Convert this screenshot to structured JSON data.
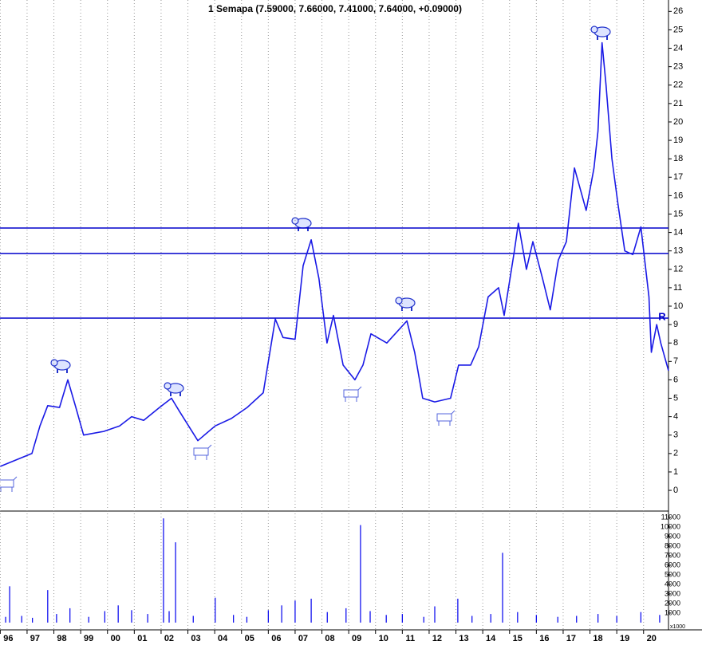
{
  "chart_data": [
    {
      "type": "line",
      "title": "1 Semapa (7.59000, 7.66000, 7.41000, 7.64000, +0.09000)",
      "x": [
        1996.0,
        1997.18,
        1997.48,
        1997.77,
        1998.21,
        1998.52,
        1998.82,
        1999.11,
        1999.86,
        2000.45,
        2000.9,
        2001.35,
        2001.94,
        2002.39,
        2002.68,
        2003.37,
        2004.02,
        2004.62,
        2005.21,
        2005.81,
        2006.26,
        2006.55,
        2007.0,
        2007.3,
        2007.6,
        2007.89,
        2008.19,
        2008.43,
        2008.79,
        2009.23,
        2009.53,
        2009.83,
        2010.42,
        2011.17,
        2011.46,
        2011.76,
        2012.21,
        2012.8,
        2013.1,
        2013.55,
        2013.85,
        2014.2,
        2014.59,
        2014.8,
        2015.18,
        2015.33,
        2015.63,
        2015.87,
        2016.23,
        2016.52,
        2016.82,
        2017.12,
        2017.42,
        2017.86,
        2018.15,
        2018.3,
        2018.45,
        2018.6,
        2018.82,
        2019.05,
        2019.3,
        2019.6,
        2019.9,
        2020.2,
        2020.29,
        2020.49,
        2020.64,
        2020.93
      ],
      "values": [
        1.3,
        2.0,
        3.5,
        4.6,
        4.5,
        6.0,
        4.5,
        3.0,
        3.2,
        3.5,
        4.0,
        3.8,
        4.5,
        5.0,
        4.3,
        2.7,
        3.5,
        3.9,
        4.5,
        5.3,
        9.3,
        8.3,
        8.2,
        12.2,
        13.6,
        11.5,
        8.0,
        9.5,
        6.8,
        6.0,
        6.8,
        8.5,
        8.0,
        9.2,
        7.5,
        5.0,
        4.8,
        5.0,
        6.8,
        6.8,
        7.8,
        10.5,
        11.0,
        9.5,
        13.0,
        14.5,
        12.0,
        13.5,
        11.5,
        9.8,
        12.5,
        13.5,
        17.5,
        15.2,
        17.5,
        19.5,
        24.3,
        22.0,
        18.0,
        15.5,
        13.0,
        12.8,
        14.3,
        10.5,
        7.5,
        9.0,
        8.0,
        6.5
      ],
      "color": "#1a1ae6",
      "xlim": [
        1995.99,
        2020.93
      ],
      "ylim": [
        -1.08,
        26.62
      ],
      "yticks": [
        0,
        1,
        2,
        3,
        4,
        5,
        6,
        7,
        8,
        9,
        10,
        11,
        12,
        13,
        14,
        15,
        16,
        17,
        18,
        19,
        20,
        21,
        22,
        23,
        24,
        25,
        26
      ],
      "xticks": [
        {
          "value": 1996,
          "label": "96"
        },
        {
          "value": 1997,
          "label": "97"
        },
        {
          "value": 1998,
          "label": "98"
        },
        {
          "value": 1999,
          "label": "99"
        },
        {
          "value": 2000,
          "label": "00"
        },
        {
          "value": 2001,
          "label": "01"
        },
        {
          "value": 2002,
          "label": "02"
        },
        {
          "value": 2003,
          "label": "03"
        },
        {
          "value": 2004,
          "label": "04"
        },
        {
          "value": 2005,
          "label": "05"
        },
        {
          "value": 2006,
          "label": "06"
        },
        {
          "value": 2007,
          "label": "07"
        },
        {
          "value": 2008,
          "label": "08"
        },
        {
          "value": 2009,
          "label": "09"
        },
        {
          "value": 2010,
          "label": "10"
        },
        {
          "value": 2011,
          "label": "11"
        },
        {
          "value": 2012,
          "label": "12"
        },
        {
          "value": 2013,
          "label": "13"
        },
        {
          "value": 2014,
          "label": "14"
        },
        {
          "value": 2015,
          "label": "15"
        },
        {
          "value": 2016,
          "label": "16"
        },
        {
          "value": 2017,
          "label": "17"
        },
        {
          "value": 2018,
          "label": "18"
        },
        {
          "value": 2019,
          "label": "19"
        },
        {
          "value": 2020,
          "label": "20"
        }
      ],
      "hlines": [
        14.24,
        12.86,
        9.35
      ],
      "hline_color": "#0000cc",
      "annotation": "R",
      "grid": true
    },
    {
      "type": "bar",
      "x": [
        1996.2,
        1996.35,
        1996.8,
        1997.2,
        1997.77,
        1998.1,
        1998.6,
        1999.3,
        1999.9,
        2000.4,
        2000.9,
        2001.5,
        2002.09,
        2002.3,
        2002.54,
        2003.2,
        2004.02,
        2004.7,
        2005.2,
        2006.0,
        2006.5,
        2007.0,
        2007.6,
        2008.2,
        2008.9,
        2009.44,
        2009.8,
        2010.4,
        2011.0,
        2011.8,
        2012.21,
        2013.07,
        2013.6,
        2014.3,
        2014.74,
        2015.3,
        2016.0,
        2016.8,
        2017.5,
        2018.3,
        2019.0,
        2019.9,
        2020.6
      ],
      "values": [
        600,
        3800,
        700,
        500,
        3400,
        900,
        1500,
        600,
        1200,
        1800,
        1300,
        900,
        10900,
        1200,
        8400,
        700,
        2600,
        800,
        600,
        1300,
        1800,
        2300,
        2500,
        1100,
        1500,
        10200,
        1200,
        800,
        900,
        600,
        1700,
        2500,
        700,
        900,
        7300,
        1100,
        800,
        600,
        700,
        900,
        700,
        1100,
        800
      ],
      "color": "#0000ee",
      "ylim": [
        -760,
        11500
      ],
      "yticks": [
        1000,
        2000,
        3000,
        4000,
        5000,
        6000,
        7000,
        8000,
        9000,
        10000,
        11000
      ],
      "unit_label": "x1000"
    }
  ]
}
